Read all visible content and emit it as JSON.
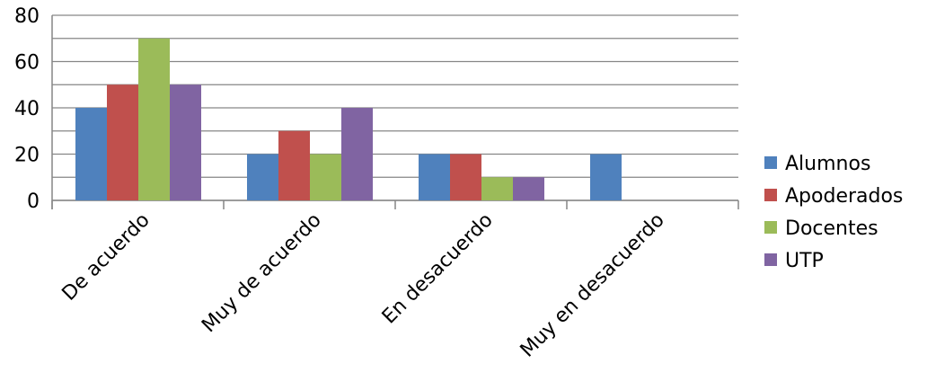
{
  "chart_data": {
    "type": "bar",
    "categories": [
      "De acuerdo",
      "Muy de acuerdo",
      "En desacuerdo",
      "Muy en desacuerdo"
    ],
    "series": [
      {
        "name": "Alumnos",
        "values": [
          40,
          20,
          20,
          20
        ],
        "color": "#4F81BD"
      },
      {
        "name": "Apoderados",
        "values": [
          50,
          30,
          20,
          0
        ],
        "color": "#C0504D"
      },
      {
        "name": "Docentes",
        "values": [
          70,
          20,
          10,
          0
        ],
        "color": "#9BBB59"
      },
      {
        "name": "UTP",
        "values": [
          50,
          40,
          10,
          0
        ],
        "color": "#8064A2"
      }
    ],
    "yticks": [
      "0",
      "20",
      "40",
      "60",
      "80"
    ],
    "ylim": [
      0,
      80
    ],
    "grid": true,
    "legend_position": "right"
  }
}
